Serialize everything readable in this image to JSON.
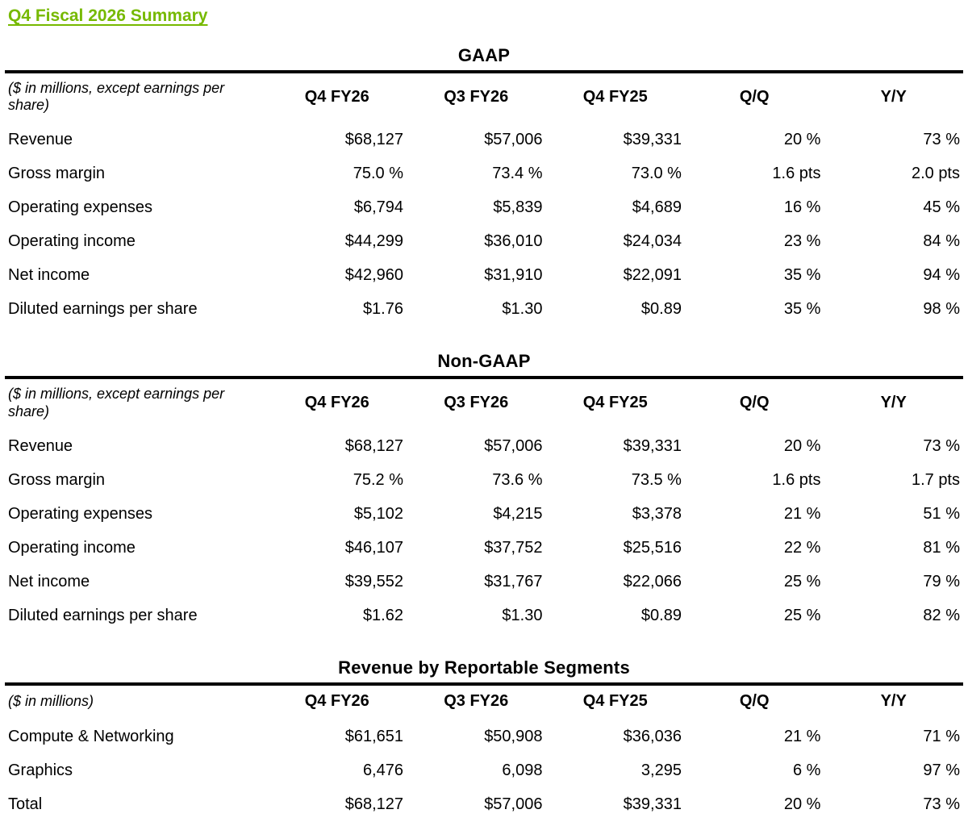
{
  "page_title": "Q4 Fiscal 2026 Summary",
  "colors": {
    "accent_green": "#76b900",
    "rule_black": "#000000"
  },
  "tables": [
    {
      "title": "GAAP",
      "unit_note": "($ in millions, except earnings per share)",
      "columns": [
        "Q4 FY26",
        "Q3 FY26",
        "Q4 FY25",
        "Q/Q",
        "Y/Y"
      ],
      "rows": [
        {
          "label": "Revenue",
          "values": [
            "$68,127",
            "$57,006",
            "$39,331",
            "20 %",
            "73 %"
          ]
        },
        {
          "label": "Gross margin",
          "values": [
            "75.0 %",
            "73.4 %",
            "73.0 %",
            "1.6 pts",
            "2.0 pts"
          ]
        },
        {
          "label": "Operating expenses",
          "values": [
            "$6,794",
            "$5,839",
            "$4,689",
            "16 %",
            "45 %"
          ]
        },
        {
          "label": "Operating income",
          "values": [
            "$44,299",
            "$36,010",
            "$24,034",
            "23 %",
            "84 %"
          ]
        },
        {
          "label": "Net income",
          "values": [
            "$42,960",
            "$31,910",
            "$22,091",
            "35 %",
            "94 %"
          ]
        },
        {
          "label": "Diluted earnings per share",
          "values": [
            "$1.76",
            "$1.30",
            "$0.89",
            "35 %",
            "98 %"
          ]
        }
      ]
    },
    {
      "title": "Non-GAAP",
      "unit_note": "($ in millions, except earnings per share)",
      "columns": [
        "Q4 FY26",
        "Q3 FY26",
        "Q4 FY25",
        "Q/Q",
        "Y/Y"
      ],
      "rows": [
        {
          "label": "Revenue",
          "values": [
            "$68,127",
            "$57,006",
            "$39,331",
            "20 %",
            "73 %"
          ]
        },
        {
          "label": "Gross margin",
          "values": [
            "75.2 %",
            "73.6 %",
            "73.5 %",
            "1.6 pts",
            "1.7 pts"
          ]
        },
        {
          "label": "Operating expenses",
          "values": [
            "$5,102",
            "$4,215",
            "$3,378",
            "21 %",
            "51 %"
          ]
        },
        {
          "label": "Operating income",
          "values": [
            "$46,107",
            "$37,752",
            "$25,516",
            "22 %",
            "81 %"
          ]
        },
        {
          "label": "Net income",
          "values": [
            "$39,552",
            "$31,767",
            "$22,066",
            "25 %",
            "79 %"
          ]
        },
        {
          "label": "Diluted earnings per share",
          "values": [
            "$1.62",
            "$1.30",
            "$0.89",
            "25 %",
            "82 %"
          ]
        }
      ]
    },
    {
      "title": "Revenue by Reportable Segments",
      "unit_note": "($ in millions)",
      "columns": [
        "Q4 FY26",
        "Q3 FY26",
        "Q4 FY25",
        "Q/Q",
        "Y/Y"
      ],
      "rows": [
        {
          "label": "Compute & Networking",
          "values": [
            "$61,651",
            "$50,908",
            "$36,036",
            "21 %",
            "71 %"
          ]
        },
        {
          "label": "Graphics",
          "values": [
            "6,476",
            "6,098",
            "3,295",
            "6 %",
            "97 %"
          ]
        },
        {
          "label": "Total",
          "values": [
            "$68,127",
            "$57,006",
            "$39,331",
            "20 %",
            "73 %"
          ]
        }
      ]
    }
  ]
}
